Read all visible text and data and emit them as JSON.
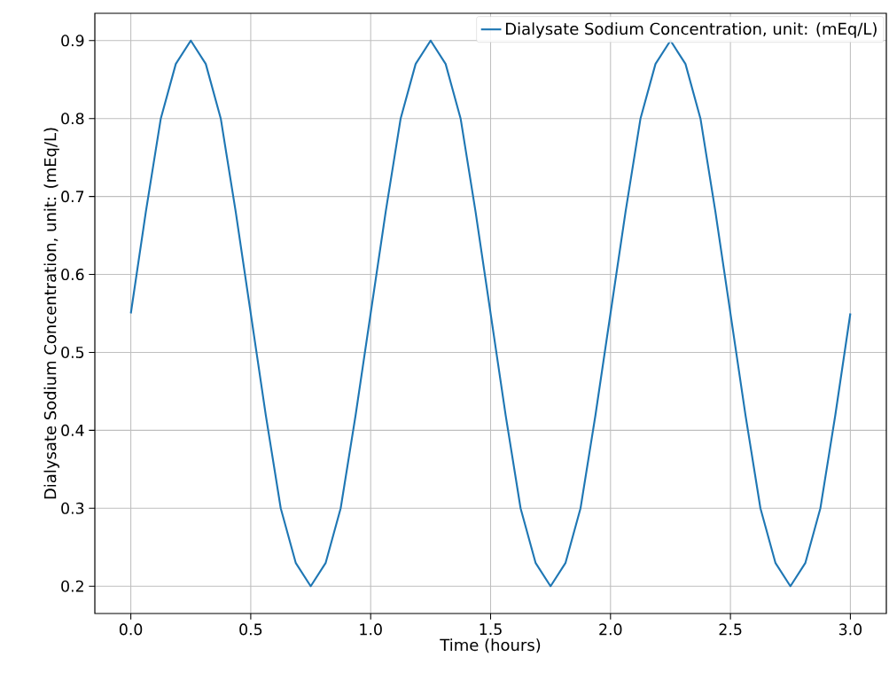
{
  "chart_data": {
    "type": "line",
    "xlabel": "Time (hours)",
    "ylabel": "Dialysate Sodium Concentration, unit: (mEq/L)",
    "x": [
      0,
      0.0625,
      0.125,
      0.1875,
      0.25,
      0.3125,
      0.375,
      0.4375,
      0.5,
      0.5625,
      0.625,
      0.6875,
      0.75,
      0.8125,
      0.875,
      0.9375,
      1,
      1.0625,
      1.125,
      1.1875,
      1.25,
      1.3125,
      1.375,
      1.4375,
      1.5,
      1.5625,
      1.625,
      1.6875,
      1.75,
      1.8125,
      1.875,
      1.9375,
      2,
      2.0625,
      2.125,
      2.1875,
      2.25,
      2.3125,
      2.375,
      2.4375,
      2.5,
      2.5625,
      2.625,
      2.6875,
      2.75,
      2.8125,
      2.875,
      2.9375,
      3
    ],
    "series": [
      {
        "name": "Dialysate Sodium Concentration, unit: (mEq/L)",
        "color": "#1f77b4",
        "values": [
          0.55,
          0.68,
          0.8,
          0.87,
          0.9,
          0.87,
          0.8,
          0.68,
          0.55,
          0.42,
          0.3,
          0.23,
          0.2,
          0.23,
          0.3,
          0.42,
          0.55,
          0.68,
          0.8,
          0.87,
          0.9,
          0.87,
          0.8,
          0.68,
          0.55,
          0.42,
          0.3,
          0.23,
          0.2,
          0.23,
          0.3,
          0.42,
          0.55,
          0.68,
          0.8,
          0.87,
          0.9,
          0.87,
          0.8,
          0.68,
          0.55,
          0.42,
          0.3,
          0.23,
          0.2,
          0.23,
          0.3,
          0.42,
          0.55
        ]
      }
    ],
    "xlim": [
      -0.15,
      3.15
    ],
    "ylim": [
      0.165,
      0.935
    ],
    "xticks": [
      {
        "value": 0,
        "label": "0.0"
      },
      0.5,
      {
        "value": 1,
        "label": "1.0"
      },
      1.5,
      {
        "value": 2,
        "label": "2.0"
      },
      2.5,
      {
        "value": 3,
        "label": "3.0"
      }
    ],
    "yticks": [
      0.2,
      0.3,
      0.4,
      0.5,
      0.6,
      0.7,
      0.8,
      0.9
    ],
    "grid": true,
    "legend": "top right",
    "line_style": "solid",
    "marker": "none"
  }
}
